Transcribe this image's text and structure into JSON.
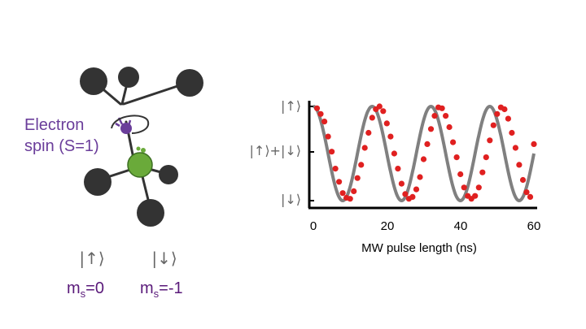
{
  "molecule": {
    "spin_label_line1": "Electron",
    "spin_label_line2": "spin (S=1)",
    "label_color": "#6a3d9a"
  },
  "states": [
    {
      "ket": "|↑⟩",
      "ms_label": "m",
      "ms_sub": "s",
      "ms_value": "=0"
    },
    {
      "ket": "|↓⟩",
      "ms_label": "m",
      "ms_sub": "s",
      "ms_value": "=-1"
    }
  ],
  "chart_data": {
    "type": "scatter",
    "xlabel": "MW pulse length (ns)",
    "xlim": [
      0,
      60
    ],
    "x_ticks": [
      "0",
      "20",
      "40",
      "60"
    ],
    "y_ticks": [
      "|↑⟩",
      "|↑⟩+|↓⟩",
      "|↓⟩"
    ],
    "ylim": [
      0,
      1
    ],
    "fit_period_ns": 16,
    "fit_color": "#808080",
    "point_color": "#e02020",
    "x": [
      1,
      2,
      3,
      4,
      5,
      6,
      7,
      8,
      9,
      10,
      11,
      12,
      13,
      14,
      15,
      16,
      17,
      18,
      19,
      20,
      21,
      22,
      23,
      24,
      25,
      26,
      27,
      28,
      29,
      30,
      31,
      32,
      33,
      34,
      35,
      36,
      37,
      38,
      39,
      40,
      41,
      42,
      43,
      44,
      45,
      46,
      47,
      48,
      49,
      50,
      51,
      52,
      53,
      54,
      55,
      56,
      57,
      58,
      59,
      60
    ],
    "y": [
      0.98,
      0.92,
      0.84,
      0.68,
      0.52,
      0.34,
      0.2,
      0.08,
      0.03,
      0.02,
      0.1,
      0.24,
      0.38,
      0.56,
      0.72,
      0.88,
      0.97,
      1.0,
      0.95,
      0.82,
      0.68,
      0.5,
      0.34,
      0.18,
      0.07,
      0.02,
      0.04,
      0.12,
      0.25,
      0.44,
      0.6,
      0.76,
      0.9,
      0.99,
      0.98,
      0.9,
      0.78,
      0.62,
      0.46,
      0.28,
      0.14,
      0.05,
      0.02,
      0.05,
      0.14,
      0.3,
      0.46,
      0.64,
      0.8,
      0.92,
      0.99,
      0.97,
      0.87,
      0.72,
      0.56,
      0.38,
      0.22,
      0.09,
      0.04,
      0.6
    ]
  }
}
